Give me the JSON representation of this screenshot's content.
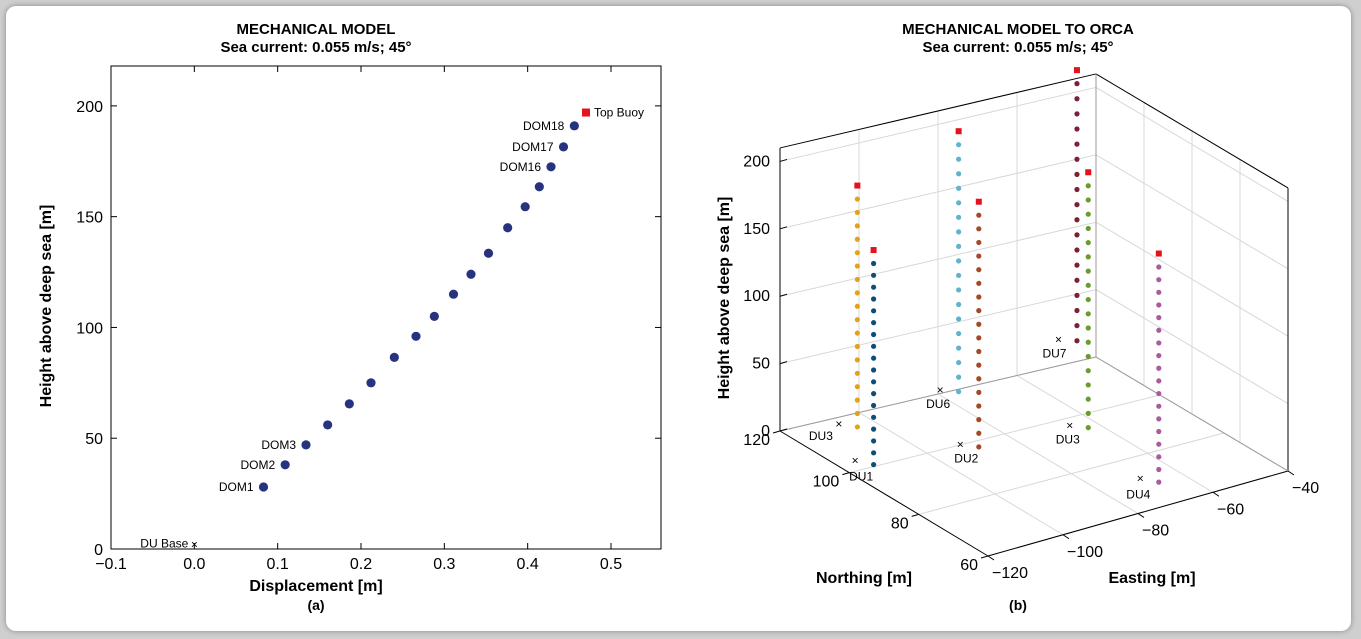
{
  "chart_data": [
    {
      "panel": "a",
      "type": "scatter",
      "title": "MECHANICAL MODEL",
      "subtitle": "Sea current: 0.055 m/s; 45°",
      "xlabel": "Displacement [m]",
      "ylabel": "Height above deep sea [m]",
      "caption": "(a)",
      "xlim": [
        -0.1,
        0.56
      ],
      "ylim": [
        0,
        218
      ],
      "xticks": [
        "−0.1",
        "0.0",
        "0.1",
        "0.2",
        "0.3",
        "0.4",
        "0.5"
      ],
      "xtick_values": [
        -0.1,
        0.0,
        0.1,
        0.2,
        0.3,
        0.4,
        0.5
      ],
      "yticks": [
        "0",
        "50",
        "100",
        "150",
        "200"
      ],
      "ytick_values": [
        0,
        50,
        100,
        150,
        200
      ],
      "grid": false,
      "colors": {
        "dom": "#28337f",
        "buoy": "#e3121b",
        "base": "#000000"
      },
      "dom_points": [
        {
          "x": 0.083,
          "y": 28
        },
        {
          "x": 0.109,
          "y": 38
        },
        {
          "x": 0.134,
          "y": 47
        },
        {
          "x": 0.16,
          "y": 56
        },
        {
          "x": 0.186,
          "y": 65.5
        },
        {
          "x": 0.212,
          "y": 75
        },
        {
          "x": 0.24,
          "y": 86.5
        },
        {
          "x": 0.266,
          "y": 96
        },
        {
          "x": 0.288,
          "y": 105
        },
        {
          "x": 0.311,
          "y": 115
        },
        {
          "x": 0.332,
          "y": 124
        },
        {
          "x": 0.353,
          "y": 133.5
        },
        {
          "x": 0.376,
          "y": 145
        },
        {
          "x": 0.397,
          "y": 154.5
        },
        {
          "x": 0.414,
          "y": 163.5
        },
        {
          "x": 0.428,
          "y": 172.5
        },
        {
          "x": 0.443,
          "y": 181.5
        },
        {
          "x": 0.456,
          "y": 191
        }
      ],
      "buoy": {
        "x": 0.47,
        "y": 197,
        "label": "Top Buoy"
      },
      "base": {
        "x": 0.0,
        "y": 2,
        "label": "DU Base"
      },
      "labels": [
        {
          "text": "DOM1",
          "index": 0
        },
        {
          "text": "DOM2",
          "index": 1
        },
        {
          "text": "DOM3",
          "index": 2
        },
        {
          "text": "DOM16",
          "index": 15
        },
        {
          "text": "DOM17",
          "index": 16
        },
        {
          "text": "DOM18",
          "index": 17
        }
      ]
    },
    {
      "panel": "b",
      "type": "scatter",
      "title": "MECHANICAL MODEL TO ORCA",
      "subtitle": "Sea current: 0.055 m/s; 45°",
      "xlabel": "Easting [m]",
      "ylabel": "Northing [m]",
      "zlabel": "Height above deep sea [m]",
      "caption": "(b)",
      "zticks": [
        "0",
        "50",
        "100",
        "150",
        "200"
      ],
      "northing_ticks": [
        "120",
        "100",
        "80",
        "60"
      ],
      "easting_ticks": [
        "−120",
        "−100",
        "−80",
        "−60",
        "−40"
      ],
      "grid": true,
      "colors": {
        "buoy": "#e3121b",
        "base": "#000000"
      },
      "strings": [
        {
          "color": "#e3a21a",
          "label": "DU3"
        },
        {
          "color": "#0e4d78",
          "label": "DU1"
        },
        {
          "color": "#5fb3cc",
          "label": "DU6"
        },
        {
          "color": "#a5482a",
          "label": "DU2"
        },
        {
          "color": "#7d2037",
          "label": "DU7"
        },
        {
          "color": "#699c2c",
          "label": "DU3"
        },
        {
          "color": "#a85c9c",
          "label": "DU4"
        }
      ]
    }
  ]
}
